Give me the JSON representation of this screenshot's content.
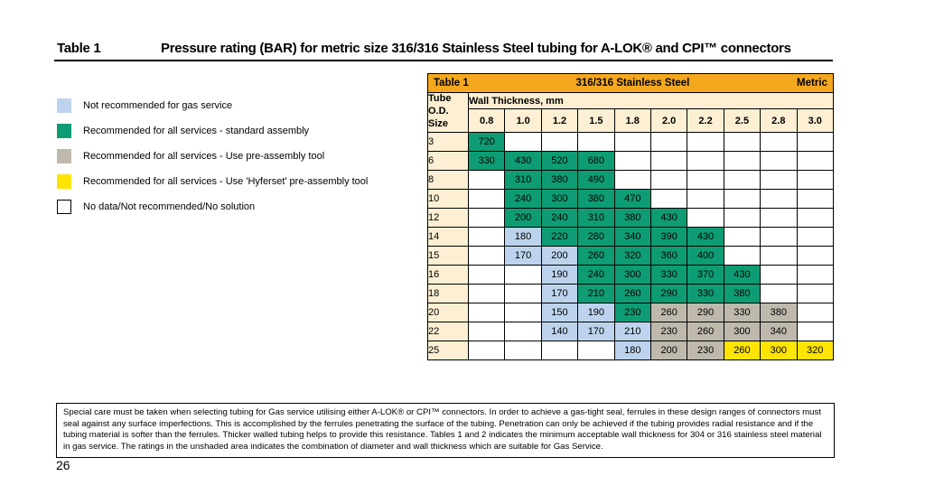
{
  "title": {
    "label": "Table 1",
    "text": "Pressure rating (BAR) for metric size 316/316 Stainless Steel tubing for A-LOK® and CPI™ connectors"
  },
  "legend": {
    "items": [
      {
        "color": "#BDD3ED",
        "bordered": false,
        "label": "Not recommended for gas service"
      },
      {
        "color": "#0E9C74",
        "bordered": false,
        "label": "Recommended for all services - standard assembly"
      },
      {
        "color": "#BFB9AD",
        "bordered": false,
        "label": "Recommended for all services -  Use pre-assembly tool"
      },
      {
        "color": "#FFE400",
        "bordered": false,
        "label": "Recommended for all services - Use 'Hyferset' pre-assembly tool"
      },
      {
        "color": "#FFFFFF",
        "bordered": true,
        "label": "No data/Not recommended/No solution"
      }
    ]
  },
  "table": {
    "header": {
      "table_label": "Table 1",
      "material": "316/316 Stainless Steel",
      "metric_label": "Metric",
      "row_header": "Tube O.D. Size",
      "col_group_label": "Wall Thickness, mm",
      "thicknesses": [
        "0.8",
        "1.0",
        "1.2",
        "1.5",
        "1.8",
        "2.0",
        "2.2",
        "2.5",
        "2.8",
        "3.0"
      ]
    },
    "cell_colors": {
      "green": "#0E9C74",
      "blue": "#BDD3ED",
      "gray": "#BFB9AD",
      "yellow": "#FFE400",
      "white": "#FFFFFF"
    },
    "rows": [
      {
        "size": "3",
        "cells": [
          {
            "v": "720",
            "c": "green"
          },
          null,
          null,
          null,
          null,
          null,
          null,
          null,
          null,
          null
        ]
      },
      {
        "size": "6",
        "cells": [
          {
            "v": "330",
            "c": "green"
          },
          {
            "v": "430",
            "c": "green"
          },
          {
            "v": "520",
            "c": "green"
          },
          {
            "v": "680",
            "c": "green"
          },
          null,
          null,
          null,
          null,
          null,
          null
        ]
      },
      {
        "size": "8",
        "cells": [
          null,
          {
            "v": "310",
            "c": "green"
          },
          {
            "v": "380",
            "c": "green"
          },
          {
            "v": "490",
            "c": "green"
          },
          null,
          null,
          null,
          null,
          null,
          null
        ]
      },
      {
        "size": "10",
        "cells": [
          null,
          {
            "v": "240",
            "c": "green"
          },
          {
            "v": "300",
            "c": "green"
          },
          {
            "v": "380",
            "c": "green"
          },
          {
            "v": "470",
            "c": "green"
          },
          null,
          null,
          null,
          null,
          null
        ]
      },
      {
        "size": "12",
        "cells": [
          null,
          {
            "v": "200",
            "c": "green"
          },
          {
            "v": "240",
            "c": "green"
          },
          {
            "v": "310",
            "c": "green"
          },
          {
            "v": "380",
            "c": "green"
          },
          {
            "v": "430",
            "c": "green"
          },
          null,
          null,
          null,
          null
        ]
      },
      {
        "size": "14",
        "cells": [
          null,
          {
            "v": "180",
            "c": "blue"
          },
          {
            "v": "220",
            "c": "green"
          },
          {
            "v": "280",
            "c": "green"
          },
          {
            "v": "340",
            "c": "green"
          },
          {
            "v": "390",
            "c": "green"
          },
          {
            "v": "430",
            "c": "green"
          },
          null,
          null,
          null
        ]
      },
      {
        "size": "15",
        "cells": [
          null,
          {
            "v": "170",
            "c": "blue"
          },
          {
            "v": "200",
            "c": "blue"
          },
          {
            "v": "260",
            "c": "green"
          },
          {
            "v": "320",
            "c": "green"
          },
          {
            "v": "360",
            "c": "green"
          },
          {
            "v": "400",
            "c": "green"
          },
          null,
          null,
          null
        ]
      },
      {
        "size": "16",
        "cells": [
          null,
          null,
          {
            "v": "190",
            "c": "blue"
          },
          {
            "v": "240",
            "c": "green"
          },
          {
            "v": "300",
            "c": "green"
          },
          {
            "v": "330",
            "c": "green"
          },
          {
            "v": "370",
            "c": "green"
          },
          {
            "v": "430",
            "c": "green"
          },
          null,
          null
        ]
      },
      {
        "size": "18",
        "cells": [
          null,
          null,
          {
            "v": "170",
            "c": "blue"
          },
          {
            "v": "210",
            "c": "green"
          },
          {
            "v": "260",
            "c": "green"
          },
          {
            "v": "290",
            "c": "green"
          },
          {
            "v": "330",
            "c": "green"
          },
          {
            "v": "380",
            "c": "green"
          },
          null,
          null
        ]
      },
      {
        "size": "20",
        "cells": [
          null,
          null,
          {
            "v": "150",
            "c": "blue"
          },
          {
            "v": "190",
            "c": "blue"
          },
          {
            "v": "230",
            "c": "green"
          },
          {
            "v": "260",
            "c": "gray"
          },
          {
            "v": "290",
            "c": "gray"
          },
          {
            "v": "330",
            "c": "gray"
          },
          {
            "v": "380",
            "c": "gray"
          },
          null
        ]
      },
      {
        "size": "22",
        "cells": [
          null,
          null,
          {
            "v": "140",
            "c": "blue"
          },
          {
            "v": "170",
            "c": "blue"
          },
          {
            "v": "210",
            "c": "blue"
          },
          {
            "v": "230",
            "c": "gray"
          },
          {
            "v": "260",
            "c": "gray"
          },
          {
            "v": "300",
            "c": "gray"
          },
          {
            "v": "340",
            "c": "gray"
          },
          null
        ]
      },
      {
        "size": "25",
        "cells": [
          null,
          null,
          null,
          null,
          {
            "v": "180",
            "c": "blue"
          },
          {
            "v": "200",
            "c": "gray"
          },
          {
            "v": "230",
            "c": "gray"
          },
          {
            "v": "260",
            "c": "yellow"
          },
          {
            "v": "300",
            "c": "yellow"
          },
          {
            "v": "320",
            "c": "yellow"
          }
        ]
      }
    ]
  },
  "footnote": "Special care must be taken when selecting tubing for Gas service utilising either A-LOK® or CPI™ connectors. In order to achieve a gas-tight seal, ferrules in these design ranges of connectors must seal against any surface imperfections. This is accomplished by the ferrules penetrating the surface of the tubing. Penetration can only be achieved if the tubing provides radial resistance and if the tubing material is softer than the ferrules. Thicker walled tubing helps to provide this resistance. Tables 1 and 2 indicates the minimum acceptable wall thickness for 304 or 316 stainless steel material in gas service. The ratings in the unshaded area indicates the combination of diameter and wall thickness which are suitable for Gas Service.",
  "page": {
    "number": "26"
  }
}
